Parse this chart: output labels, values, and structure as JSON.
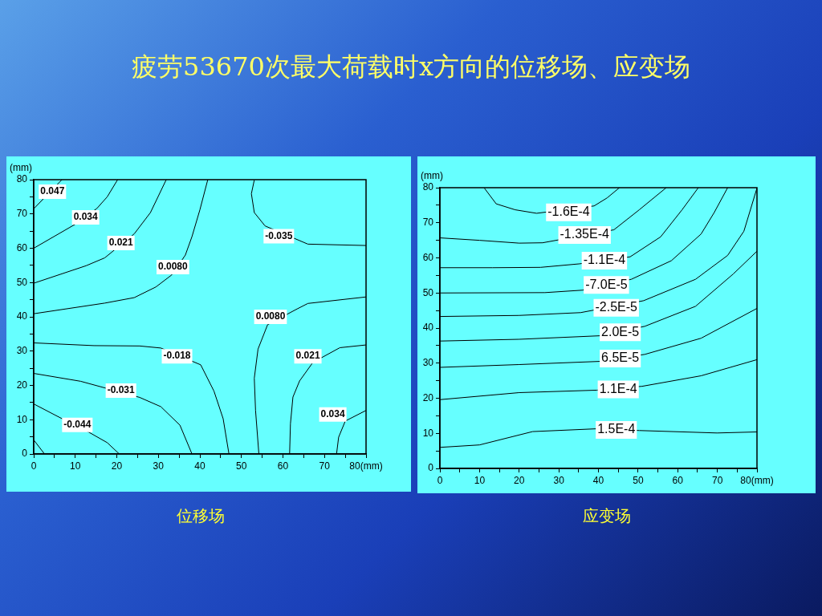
{
  "chart_data": [
    {
      "type": "line",
      "title": "位移场",
      "ylabel": "(mm)",
      "xlim": [
        0,
        80
      ],
      "ylim": [
        0,
        80
      ],
      "xticks": [
        0,
        {
          "value": 5,
          "label": null
        },
        10,
        {
          "value": 15,
          "label": null
        },
        20,
        {
          "value": 25,
          "label": null
        },
        30,
        {
          "value": 35,
          "label": null
        },
        40,
        {
          "value": 45,
          "label": null
        },
        50,
        {
          "value": 55,
          "label": null
        },
        60,
        {
          "value": 65,
          "label": null
        },
        70,
        {
          "value": 75,
          "label": null
        },
        {
          "value": 80,
          "label": "80(mm)"
        }
      ],
      "yticks": [
        0,
        {
          "value": 5,
          "label": null
        },
        10,
        {
          "value": 15,
          "label": null
        },
        20,
        {
          "value": 25,
          "label": null
        },
        30,
        {
          "value": 35,
          "label": null
        },
        40,
        {
          "value": 45,
          "label": null
        },
        50,
        {
          "value": 55,
          "label": null
        },
        60,
        {
          "value": 65,
          "label": null
        },
        70,
        {
          "value": 75,
          "label": null
        },
        80
      ],
      "grid": false,
      "legend": false,
      "series": [
        {
          "color": "#000000",
          "x": [
            0,
            6.8
          ],
          "values": [
            71.5,
            80
          ]
        },
        {
          "color": "#000000",
          "x": [
            0,
            10,
            15.2,
            17.7,
            20.2
          ],
          "values": [
            60,
            67,
            71.6,
            75,
            80
          ]
        },
        {
          "color": "#000000",
          "x": [
            0,
            12.6,
            17.1,
            24.2,
            28.1,
            31.9
          ],
          "values": [
            49.8,
            54.9,
            57.2,
            64.2,
            70.4,
            80
          ]
        },
        {
          "color": "#000000",
          "x": [
            0,
            17.1,
            24.2,
            29.4,
            33.2,
            36.5,
            38.1,
            40,
            41.9
          ],
          "values": [
            40.9,
            44,
            45.6,
            48.7,
            52.2,
            58,
            63.4,
            71.2,
            80
          ]
        },
        {
          "color": "#000000",
          "x": [
            0,
            14.5,
            25.5,
            30.6,
            40.2,
            43.4,
            45.6,
            47
          ],
          "values": [
            32.4,
            31.6,
            31.5,
            30.9,
            26,
            18.3,
            10.3,
            0
          ]
        },
        {
          "color": "#000000",
          "x": [
            0,
            11.3,
            25.5,
            30.6,
            35.2,
            38.1
          ],
          "values": [
            23.5,
            21.2,
            16.5,
            13.8,
            8.4,
            0
          ]
        },
        {
          "color": "#000000",
          "x": [
            0,
            6.8,
            13.2,
            17.7,
            20.6
          ],
          "values": [
            14.6,
            10.3,
            6.4,
            3.3,
            0
          ]
        },
        {
          "color": "#000000",
          "x": [
            0,
            2.6
          ],
          "values": [
            4.1,
            0
          ]
        },
        {
          "color": "#000000",
          "x": [
            53.1,
            52.4,
            53.1,
            55.7,
            66,
            80
          ],
          "values": [
            79.9,
            75.9,
            70.4,
            66.5,
            61.2,
            60.8
          ]
        },
        {
          "color": "#000000",
          "x": [
            80,
            66,
            63.4,
            56.3,
            54,
            53.1,
            53.4,
            54.2
          ],
          "values": [
            45.8,
            43.9,
            42.3,
            37.7,
            30.6,
            22.1,
            12.7,
            0
          ]
        },
        {
          "color": "#000000",
          "x": [
            80,
            73.7,
            67.2,
            64,
            62.4,
            61.8,
            61.6
          ],
          "values": [
            31.8,
            31,
            26.7,
            21.3,
            16.6,
            8.8,
            0
          ]
        },
        {
          "color": "#000000",
          "x": [
            80,
            75,
            73.4,
            72.9
          ],
          "values": [
            12.7,
            9.6,
            4.9,
            0
          ]
        }
      ],
      "annotations": [
        "疲劳53670次最大荷载时x方向的位移场、应变场",
        {
          "text": "0.047",
          "x": 4.5,
          "y": 76.5
        },
        {
          "text": "0.034",
          "x": 12.5,
          "y": 69
        },
        {
          "text": "0.021",
          "x": 21,
          "y": 61.5
        },
        {
          "text": "0.0080",
          "x": 33.5,
          "y": 54.5
        },
        {
          "text": "-0.018",
          "x": 34.5,
          "y": 28.5
        },
        {
          "text": "-0.031",
          "x": 21,
          "y": 18.5
        },
        {
          "text": "-0.044",
          "x": 10.5,
          "y": 8.5
        },
        {
          "text": "-0.035",
          "x": 59,
          "y": 63.5
        },
        {
          "text": "0.0080",
          "x": 57,
          "y": 40
        },
        {
          "text": "0.021",
          "x": 66,
          "y": 28.5
        },
        {
          "text": "0.034",
          "x": 72,
          "y": 11.5
        }
      ]
    },
    {
      "type": "line",
      "title": "应变场",
      "ylabel": "(mm)",
      "xlim": [
        0,
        80
      ],
      "ylim": [
        0,
        80
      ],
      "xticks": [
        0,
        {
          "value": 5,
          "label": null
        },
        10,
        {
          "value": 15,
          "label": null
        },
        20,
        {
          "value": 25,
          "label": null
        },
        30,
        {
          "value": 35,
          "label": null
        },
        40,
        {
          "value": 45,
          "label": null
        },
        50,
        {
          "value": 55,
          "label": null
        },
        60,
        {
          "value": 65,
          "label": null
        },
        70,
        {
          "value": 75,
          "label": null
        },
        {
          "value": 80,
          "label": "80(mm)"
        }
      ],
      "yticks": [
        0,
        {
          "value": 5,
          "label": null
        },
        10,
        {
          "value": 15,
          "label": null
        },
        20,
        {
          "value": 25,
          "label": null
        },
        30,
        {
          "value": 35,
          "label": null
        },
        40,
        {
          "value": 45,
          "label": null
        },
        50,
        {
          "value": 55,
          "label": null
        },
        60,
        {
          "value": 65,
          "label": null
        },
        70,
        {
          "value": 75,
          "label": null
        },
        80
      ],
      "grid": false,
      "legend": false,
      "series": [
        {
          "color": "#000000",
          "x": [
            11.2,
            14.2,
            19,
            24.4,
            38.9,
            42.2,
            45.3
          ],
          "values": [
            79.9,
            75.4,
            73.7,
            72.7,
            74.8,
            77.1,
            80
          ]
        },
        {
          "color": "#000000",
          "x": [
            0,
            10,
            20,
            25.9,
            43.9,
            50.3,
            57.1
          ],
          "values": [
            65.7,
            65,
            64.2,
            64.3,
            68,
            73.7,
            80
          ]
        },
        {
          "color": "#000000",
          "x": [
            0,
            13.3,
            25.4,
            35.2,
            48,
            55.7,
            61.1,
            65.2
          ],
          "values": [
            57.2,
            57.2,
            57.3,
            58.3,
            60.3,
            66,
            73.7,
            80
          ]
        },
        {
          "color": "#000000",
          "x": [
            0,
            26.5,
            36,
            48.3,
            58.4,
            65.9,
            69.2,
            72.6
          ],
          "values": [
            50,
            50.1,
            50.8,
            53.9,
            59.2,
            66.8,
            72.9,
            80
          ]
        },
        {
          "color": "#000000",
          "x": [
            0,
            20,
            35.5,
            51.4,
            64.5,
            72.6,
            76.7,
            80
          ],
          "values": [
            43.3,
            43.6,
            44.4,
            47.8,
            53.9,
            60.7,
            67.6,
            79.9
          ]
        },
        {
          "color": "#000000",
          "x": [
            0,
            20,
            40.3,
            51.7,
            64.5,
            74,
            80
          ],
          "values": [
            36.3,
            36.8,
            37.8,
            40.5,
            46.2,
            55.4,
            61.9
          ]
        },
        {
          "color": "#000000",
          "x": [
            0,
            20,
            40.3,
            51.7,
            65.9,
            80
          ],
          "values": [
            28.8,
            29.6,
            30.5,
            32.5,
            37.1,
            45.6
          ]
        },
        {
          "color": "#000000",
          "x": [
            0,
            20,
            39.6,
            51,
            65.9,
            80
          ],
          "values": [
            19.6,
            21.6,
            22.3,
            23.4,
            26.4,
            31
          ]
        },
        {
          "color": "#000000",
          "x": [
            0,
            10,
            23.4,
            39.6,
            50.3,
            69.9,
            80
          ],
          "values": [
            6,
            6.7,
            10.5,
            11.3,
            10.8,
            10.1,
            10.4
          ]
        }
      ],
      "annotations": [
        {
          "text": "-1.6E-4",
          "x": 32.5,
          "y": 73
        },
        {
          "text": "-1.35E-4",
          "x": 36.5,
          "y": 66.5
        },
        {
          "text": "-1.1E-4",
          "x": 41.5,
          "y": 59.2
        },
        {
          "text": "-7.0E-5",
          "x": 42,
          "y": 52.3
        },
        {
          "text": "-2.5E-5",
          "x": 44.5,
          "y": 45.8
        },
        {
          "text": "2.0E-5",
          "x": 45.5,
          "y": 38.8
        },
        {
          "text": "6.5E-5",
          "x": 45.5,
          "y": 31.3
        },
        {
          "text": "1.1E-4",
          "x": 45,
          "y": 22.5
        },
        {
          "text": "1.5E-4",
          "x": 44.5,
          "y": 11
        }
      ]
    }
  ]
}
